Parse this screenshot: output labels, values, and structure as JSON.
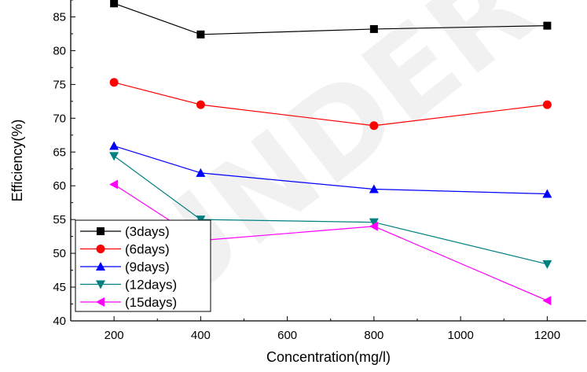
{
  "watermark": "UNDER PEER",
  "chart_data": {
    "type": "line",
    "xlabel": "Concentration(mg/l)",
    "ylabel": "Efficiency(%)",
    "xlim": [
      100,
      1290
    ],
    "ylim": [
      40,
      87.5
    ],
    "xticks": [
      200,
      400,
      600,
      800,
      1000,
      1200
    ],
    "yticks": [
      40,
      45,
      50,
      55,
      60,
      65,
      70,
      75,
      80,
      85
    ],
    "x": [
      200,
      400,
      800,
      1200
    ],
    "grid": false,
    "legend_position": "bottom-left",
    "series": [
      {
        "name": "(3days)",
        "values": [
          87.0,
          82.4,
          83.2,
          83.7
        ],
        "color": "#000000",
        "marker": "square"
      },
      {
        "name": "(6days)",
        "values": [
          75.3,
          72.0,
          68.9,
          72.0
        ],
        "color": "#ff0000",
        "marker": "circle"
      },
      {
        "name": "(9days)",
        "values": [
          65.9,
          61.9,
          59.5,
          58.8
        ],
        "color": "#0000ff",
        "marker": "triangle-up"
      },
      {
        "name": "(12days)",
        "values": [
          64.4,
          55.0,
          54.6,
          48.4
        ],
        "color": "#008080",
        "marker": "triangle-down"
      },
      {
        "name": "(15days)",
        "values": [
          60.2,
          51.9,
          54.0,
          43.0
        ],
        "color": "#ff00ff",
        "marker": "triangle-left"
      }
    ]
  }
}
